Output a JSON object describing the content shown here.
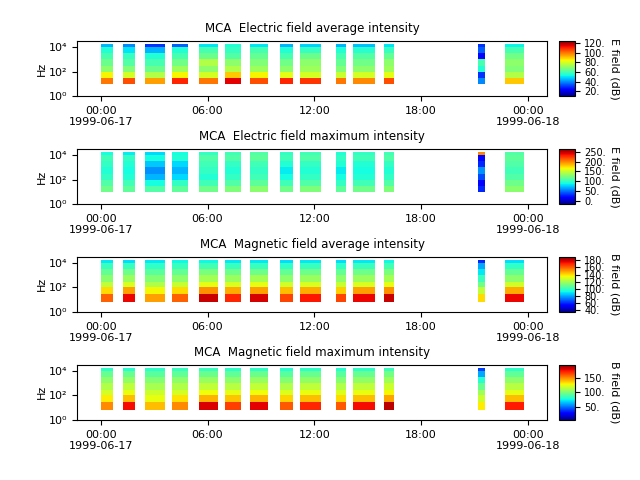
{
  "chart_data": [
    {
      "type": "heatmap",
      "title": "MCA  Electric field average intensity",
      "y_label": "Hz",
      "log": "y",
      "xlim": [
        -1.35,
        25.1
      ],
      "xticks": [
        {
          "value": 0,
          "label": "00:00\n1999-06-17"
        },
        {
          "value": 6,
          "label": "06:00"
        },
        {
          "value": 12,
          "label": "12:00"
        },
        {
          "value": 18,
          "label": "18:00"
        },
        {
          "value": 24,
          "label": "00:00\n1999-06-18"
        }
      ],
      "ylim": [
        1,
        31623
      ],
      "yticks": [
        {
          "value": 1,
          "label": "10⁰"
        },
        {
          "value": 100,
          "label": "10²"
        },
        {
          "value": 10000,
          "label": "10⁴"
        }
      ],
      "time_segments": [
        [
          0.0,
          0.7
        ],
        [
          1.25,
          1.9
        ],
        [
          2.5,
          3.6
        ],
        [
          4.0,
          4.9
        ],
        [
          5.5,
          6.6
        ],
        [
          7.0,
          7.9
        ],
        [
          8.4,
          9.4
        ],
        [
          10.1,
          10.8
        ],
        [
          11.2,
          12.4
        ],
        [
          13.2,
          13.8
        ],
        [
          14.2,
          15.4
        ],
        [
          15.9,
          16.5
        ],
        [
          21.2,
          21.6
        ],
        [
          22.7,
          23.8
        ]
      ],
      "frequency_bins": [
        10,
        30,
        100,
        300,
        1000,
        3000,
        10000,
        17000
      ],
      "cells": [
        [
          100,
          85,
          70,
          65,
          60,
          55,
          45
        ],
        [
          105,
          80,
          68,
          62,
          58,
          50,
          40
        ],
        [
          95,
          75,
          65,
          60,
          55,
          45,
          30
        ],
        [
          110,
          85,
          72,
          66,
          60,
          55,
          35
        ],
        [
          100,
          80,
          70,
          75,
          65,
          60,
          50
        ],
        [
          115,
          90,
          75,
          70,
          62,
          58,
          55
        ],
        [
          105,
          85,
          72,
          68,
          64,
          60,
          50
        ],
        [
          110,
          82,
          70,
          66,
          60,
          55,
          45
        ],
        [
          108,
          80,
          72,
          70,
          65,
          58,
          48
        ],
        [
          100,
          78,
          68,
          64,
          60,
          55,
          45
        ],
        [
          98,
          80,
          70,
          66,
          62,
          56,
          46
        ],
        [
          105,
          82,
          72,
          70,
          64,
          58,
          50
        ],
        [
          40,
          30,
          55,
          60,
          25,
          35,
          30
        ],
        [
          90,
          75,
          68,
          70,
          66,
          60,
          52
        ]
      ],
      "colorbar": {
        "label": "E field (dB)",
        "range": [
          10,
          125
        ],
        "ticks": [
          {
            "value": 20,
            "label": "20."
          },
          {
            "value": 40,
            "label": "40."
          },
          {
            "value": 60,
            "label": "60."
          },
          {
            "value": 80,
            "label": "80."
          },
          {
            "value": 100,
            "label": "100."
          },
          {
            "value": 120,
            "label": "120."
          }
        ]
      }
    },
    {
      "type": "heatmap",
      "title": "MCA  Electric field maximum intensity",
      "y_label": "Hz",
      "log": "y",
      "xlim": [
        -1.35,
        25.1
      ],
      "xticks": [
        {
          "value": 0,
          "label": "00:00\n1999-06-17"
        },
        {
          "value": 6,
          "label": "06:00"
        },
        {
          "value": 12,
          "label": "12:00"
        },
        {
          "value": 18,
          "label": "18:00"
        },
        {
          "value": 24,
          "label": "00:00\n1999-06-18"
        }
      ],
      "ylim": [
        1,
        31623
      ],
      "yticks": [
        {
          "value": 1,
          "label": "10⁰"
        },
        {
          "value": 100,
          "label": "10²"
        },
        {
          "value": 10000,
          "label": "10⁴"
        }
      ],
      "time_segments": [
        [
          0.0,
          0.7
        ],
        [
          1.25,
          1.9
        ],
        [
          2.5,
          3.6
        ],
        [
          4.0,
          4.9
        ],
        [
          5.5,
          6.6
        ],
        [
          7.0,
          7.9
        ],
        [
          8.4,
          9.4
        ],
        [
          10.1,
          10.8
        ],
        [
          11.2,
          12.4
        ],
        [
          13.2,
          13.8
        ],
        [
          14.2,
          15.4
        ],
        [
          15.9,
          16.5
        ],
        [
          21.2,
          21.6
        ],
        [
          22.7,
          23.8
        ]
      ],
      "frequency_bins": [
        10,
        30,
        100,
        300,
        1000,
        3000,
        10000,
        17000
      ],
      "cells": [
        [
          120,
          110,
          100,
          95,
          100,
          105,
          90
        ],
        [
          115,
          105,
          95,
          90,
          95,
          100,
          85
        ],
        [
          110,
          90,
          70,
          60,
          75,
          90,
          80
        ],
        [
          115,
          100,
          80,
          70,
          80,
          95,
          90
        ],
        [
          120,
          105,
          95,
          100,
          105,
          110,
          100
        ],
        [
          125,
          110,
          100,
          95,
          100,
          110,
          105
        ],
        [
          130,
          115,
          105,
          100,
          105,
          115,
          110
        ],
        [
          120,
          105,
          90,
          85,
          95,
          105,
          100
        ],
        [
          125,
          110,
          100,
          95,
          100,
          110,
          105
        ],
        [
          115,
          100,
          90,
          85,
          95,
          100,
          95
        ],
        [
          120,
          105,
          95,
          90,
          95,
          105,
          100
        ],
        [
          125,
          110,
          100,
          95,
          100,
          110,
          105
        ],
        [
          30,
          20,
          40,
          60,
          30,
          20,
          200
        ],
        [
          130,
          120,
          110,
          105,
          110,
          115,
          110
        ]
      ],
      "colorbar": {
        "label": "E field (dB)",
        "range": [
          -15,
          265
        ],
        "ticks": [
          {
            "value": 0,
            "label": "0."
          },
          {
            "value": 50,
            "label": "50."
          },
          {
            "value": 100,
            "label": "100."
          },
          {
            "value": 150,
            "label": "150."
          },
          {
            "value": 200,
            "label": "200."
          },
          {
            "value": 250,
            "label": "250."
          }
        ]
      }
    },
    {
      "type": "heatmap",
      "title": "MCA  Magnetic field average intensity",
      "y_label": "Hz",
      "log": "y",
      "xlim": [
        -1.35,
        25.1
      ],
      "xticks": [
        {
          "value": 0,
          "label": "00:00\n1999-06-17"
        },
        {
          "value": 6,
          "label": "06:00"
        },
        {
          "value": 12,
          "label": "12:00"
        },
        {
          "value": 18,
          "label": "18:00"
        },
        {
          "value": 24,
          "label": "00:00\n1999-06-18"
        }
      ],
      "ylim": [
        1,
        31623
      ],
      "yticks": [
        {
          "value": 1,
          "label": "10⁰"
        },
        {
          "value": 100,
          "label": "10²"
        },
        {
          "value": 10000,
          "label": "10⁴"
        }
      ],
      "time_segments": [
        [
          0.0,
          0.7
        ],
        [
          1.25,
          1.9
        ],
        [
          2.5,
          3.6
        ],
        [
          4.0,
          4.9
        ],
        [
          5.5,
          6.6
        ],
        [
          7.0,
          7.9
        ],
        [
          8.4,
          9.4
        ],
        [
          10.1,
          10.8
        ],
        [
          11.2,
          12.4
        ],
        [
          13.2,
          13.8
        ],
        [
          14.2,
          15.4
        ],
        [
          15.9,
          16.5
        ],
        [
          21.2,
          21.6
        ],
        [
          22.7,
          23.8
        ]
      ],
      "frequency_bins": [
        7,
        30,
        100,
        300,
        1000,
        3000,
        10000,
        17000
      ],
      "cells": [
        [
          160,
          140,
          125,
          115,
          108,
          100,
          90
        ],
        [
          175,
          150,
          130,
          118,
          110,
          100,
          88
        ],
        [
          150,
          135,
          122,
          114,
          106,
          98,
          90
        ],
        [
          160,
          140,
          126,
          116,
          108,
          100,
          92
        ],
        [
          180,
          152,
          132,
          120,
          112,
          102,
          92
        ],
        [
          170,
          148,
          130,
          118,
          110,
          100,
          90
        ],
        [
          178,
          150,
          132,
          120,
          110,
          100,
          90
        ],
        [
          165,
          145,
          128,
          116,
          108,
          98,
          88
        ],
        [
          172,
          148,
          130,
          118,
          110,
          100,
          90
        ],
        [
          165,
          142,
          126,
          116,
          108,
          98,
          88
        ],
        [
          175,
          150,
          130,
          118,
          110,
          100,
          90
        ],
        [
          180,
          152,
          132,
          120,
          112,
          102,
          92
        ],
        [
          140,
          125,
          110,
          100,
          90,
          80,
          60
        ],
        [
          175,
          148,
          128,
          116,
          108,
          98,
          88
        ]
      ],
      "colorbar": {
        "label": "B field (dB)",
        "range": [
          35,
          190
        ],
        "ticks": [
          {
            "value": 40,
            "label": "40."
          },
          {
            "value": 60,
            "label": "60."
          },
          {
            "value": 80,
            "label": "80."
          },
          {
            "value": 100,
            "label": "100."
          },
          {
            "value": 120,
            "label": "120."
          },
          {
            "value": 140,
            "label": "140."
          },
          {
            "value": 160,
            "label": "160."
          },
          {
            "value": 180,
            "label": "180."
          }
        ]
      }
    },
    {
      "type": "heatmap",
      "title": "MCA  Magnetic field maximum intensity",
      "y_label": "Hz",
      "log": "y",
      "xlim": [
        -1.35,
        25.1
      ],
      "xticks": [
        {
          "value": 0,
          "label": "00:00\n1999-06-17"
        },
        {
          "value": 6,
          "label": "06:00"
        },
        {
          "value": 12,
          "label": "12:00"
        },
        {
          "value": 18,
          "label": "18:00"
        },
        {
          "value": 24,
          "label": "00:00\n1999-06-18"
        }
      ],
      "ylim": [
        1,
        31623
      ],
      "yticks": [
        {
          "value": 1,
          "label": "10⁰"
        },
        {
          "value": 100,
          "label": "10²"
        },
        {
          "value": 10000,
          "label": "10⁴"
        }
      ],
      "time_segments": [
        [
          0.0,
          0.7
        ],
        [
          1.25,
          1.9
        ],
        [
          2.5,
          3.6
        ],
        [
          4.0,
          4.9
        ],
        [
          5.5,
          6.6
        ],
        [
          7.0,
          7.9
        ],
        [
          8.4,
          9.4
        ],
        [
          10.1,
          10.8
        ],
        [
          11.2,
          12.4
        ],
        [
          13.2,
          13.8
        ],
        [
          14.2,
          15.4
        ],
        [
          15.9,
          16.5
        ],
        [
          21.2,
          21.6
        ],
        [
          22.7,
          23.8
        ]
      ],
      "frequency_bins": [
        7,
        30,
        100,
        300,
        1000,
        3000,
        10000,
        17000
      ],
      "cells": [
        [
          150,
          130,
          120,
          112,
          104,
          95,
          82
        ],
        [
          175,
          140,
          125,
          115,
          105,
          95,
          80
        ],
        [
          140,
          125,
          118,
          110,
          102,
          92,
          82
        ],
        [
          150,
          132,
          120,
          112,
          104,
          94,
          84
        ],
        [
          180,
          142,
          126,
          116,
          106,
          96,
          84
        ],
        [
          165,
          138,
          124,
          114,
          104,
          94,
          82
        ],
        [
          178,
          142,
          126,
          116,
          106,
          96,
          82
        ],
        [
          160,
          135,
          122,
          112,
          102,
          92,
          80
        ],
        [
          170,
          140,
          125,
          115,
          105,
          95,
          82
        ],
        [
          160,
          134,
          122,
          112,
          102,
          92,
          80
        ],
        [
          175,
          140,
          125,
          115,
          105,
          95,
          82
        ],
        [
          185,
          145,
          128,
          118,
          108,
          98,
          84
        ],
        [
          130,
          118,
          108,
          95,
          80,
          60,
          40
        ],
        [
          172,
          140,
          124,
          114,
          104,
          94,
          82
        ]
      ],
      "colorbar": {
        "label": "B field (dB)",
        "range": [
          5,
          195
        ],
        "ticks": [
          {
            "value": 50,
            "label": "50."
          },
          {
            "value": 100,
            "label": "100."
          },
          {
            "value": 150,
            "label": "150."
          }
        ]
      }
    }
  ]
}
